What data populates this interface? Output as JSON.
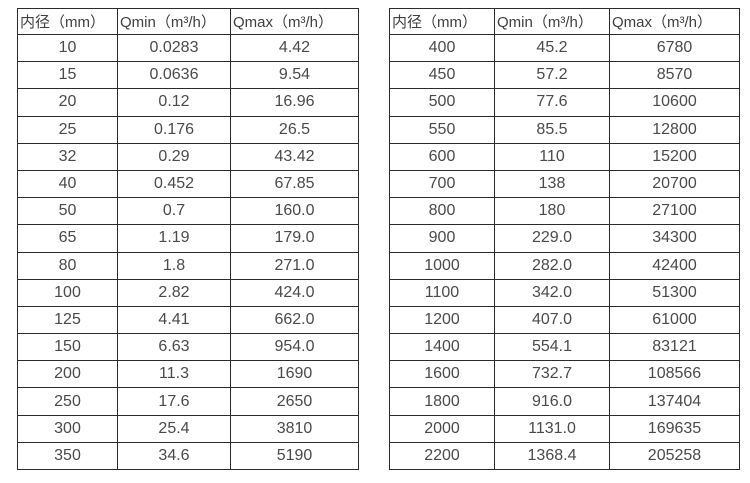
{
  "page": {
    "background": "#ffffff",
    "border_color": "#2b2b2b",
    "header_text_color": "#3f3f3f",
    "cell_text_color": "#4a4a4a"
  },
  "tables": [
    {
      "name": "small-diameters",
      "headers": [
        "内径（mm）",
        "Qmin（m³/h）",
        "Qmax（m³/h）"
      ],
      "rows": [
        [
          "10",
          "0.0283",
          "4.42"
        ],
        [
          "15",
          "0.0636",
          "9.54"
        ],
        [
          "20",
          "0.12",
          "16.96"
        ],
        [
          "25",
          "0.176",
          "26.5"
        ],
        [
          "32",
          "0.29",
          "43.42"
        ],
        [
          "40",
          "0.452",
          "67.85"
        ],
        [
          "50",
          "0.7",
          "160.0"
        ],
        [
          "65",
          "1.19",
          "179.0"
        ],
        [
          "80",
          "1.8",
          "271.0"
        ],
        [
          "100",
          "2.82",
          "424.0"
        ],
        [
          "125",
          "4.41",
          "662.0"
        ],
        [
          "150",
          "6.63",
          "954.0"
        ],
        [
          "200",
          "11.3",
          "1690"
        ],
        [
          "250",
          "17.6",
          "2650"
        ],
        [
          "300",
          "25.4",
          "3810"
        ],
        [
          "350",
          "34.6",
          "5190"
        ]
      ]
    },
    {
      "name": "large-diameters",
      "headers": [
        "内径（mm）",
        "Qmin（m³/h）",
        "Qmax（m³/h）"
      ],
      "rows": [
        [
          "400",
          "45.2",
          "6780"
        ],
        [
          "450",
          "57.2",
          "8570"
        ],
        [
          "500",
          "77.6",
          "10600"
        ],
        [
          "550",
          "85.5",
          "12800"
        ],
        [
          "600",
          "110",
          "15200"
        ],
        [
          "700",
          "138",
          "20700"
        ],
        [
          "800",
          "180",
          "27100"
        ],
        [
          "900",
          "229.0",
          "34300"
        ],
        [
          "1000",
          "282.0",
          "42400"
        ],
        [
          "1100",
          "342.0",
          "51300"
        ],
        [
          "1200",
          "407.0",
          "61000"
        ],
        [
          "1400",
          "554.1",
          "83121"
        ],
        [
          "1600",
          "732.7",
          "108566"
        ],
        [
          "1800",
          "916.0",
          "137404"
        ],
        [
          "2000",
          "1131.0",
          "169635"
        ],
        [
          "2200",
          "1368.4",
          "205258"
        ]
      ]
    }
  ]
}
